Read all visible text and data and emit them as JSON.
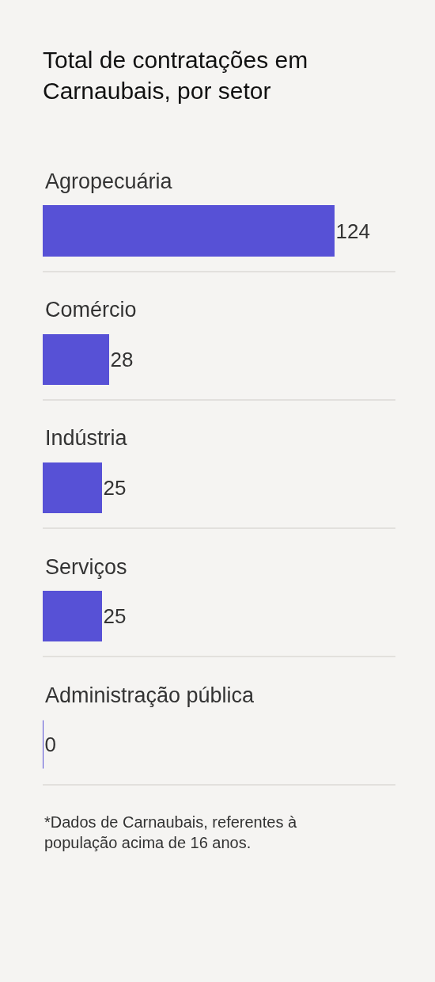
{
  "chart_data": {
    "type": "bar",
    "orientation": "horizontal",
    "title": "Total de contratações em\nCarnaubais, por setor",
    "categories": [
      "Agropecuária",
      "Comércio",
      "Indústria",
      "Serviços",
      "Administração pública"
    ],
    "values": [
      124,
      28,
      25,
      25,
      0
    ],
    "color": "#5751d6",
    "data_labels": true,
    "grid": "y",
    "tick_labels": "y",
    "annotations": [
      "*Dados de Carnaubais, referentes à\npopulação acima de 16 anos."
    ]
  }
}
